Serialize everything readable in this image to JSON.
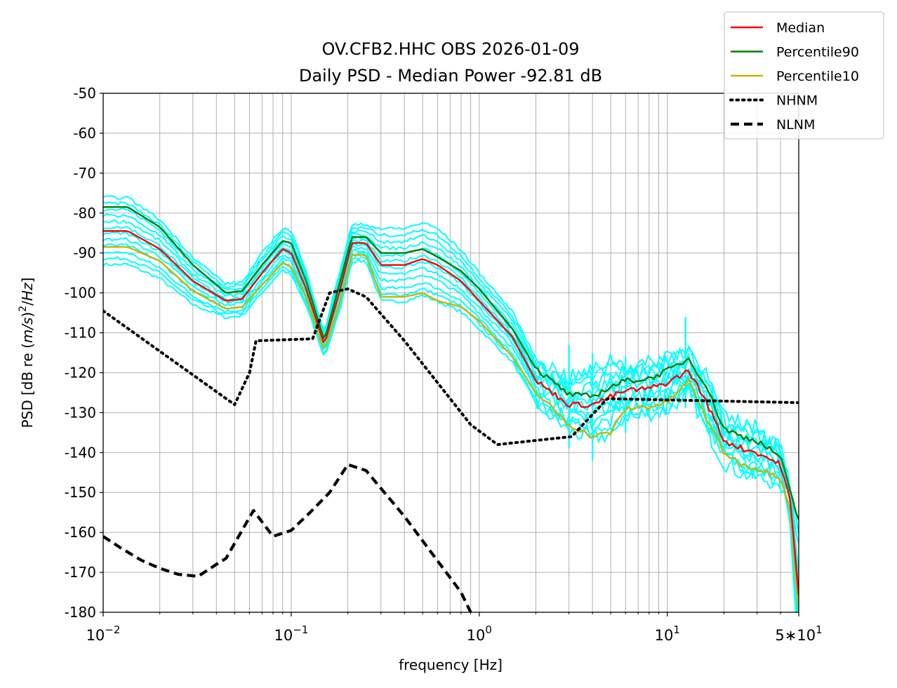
{
  "chart_data": {
    "type": "line",
    "title": "OV.CFB2.HHC OBS 2026-01-09",
    "subtitle": "Daily PSD - Median Power -92.81 dB",
    "xlabel": "frequency [Hz]",
    "ylabel_prefix": "PSD [dB re (",
    "ylabel_unit_a": "m/s",
    "ylabel_mid": ")",
    "ylabel_exp": "2",
    "ylabel_sep": "/",
    "ylabel_unit_b": "Hz",
    "ylabel_suffix": "]",
    "xscale": "log",
    "xlim": [
      0.01,
      50
    ],
    "ylim": [
      -180,
      -50
    ],
    "grid": true,
    "legend_position": "top-right",
    "xticks": [
      {
        "value": 0.01,
        "base": "10",
        "exp": "−2"
      },
      {
        "value": 0.1,
        "base": "10",
        "exp": "−1"
      },
      {
        "value": 1,
        "base": "10",
        "exp": "0"
      },
      {
        "value": 10,
        "base": "10",
        "exp": "1"
      },
      {
        "value": 50,
        "base": "5∗10",
        "exp": "1"
      }
    ],
    "yticks": [
      "-50",
      "-60",
      "-70",
      "-80",
      "-90",
      "-100",
      "-110",
      "-120",
      "-130",
      "-140",
      "-150",
      "-160",
      "-170",
      "-180"
    ],
    "hourly_color": "#00ffff",
    "series": [
      {
        "name": "Median",
        "color": "#ff0000",
        "style": "solid",
        "x": [
          0.01,
          0.0135,
          0.02,
          0.03,
          0.045,
          0.055,
          0.07,
          0.09,
          0.1,
          0.12,
          0.15,
          0.18,
          0.21,
          0.25,
          0.3,
          0.4,
          0.5,
          0.6,
          0.8,
          1.0,
          1.5,
          2.0,
          3.0,
          4.0,
          5.0,
          6.0,
          8.0,
          10,
          13,
          16,
          20,
          25,
          30,
          40,
          45,
          50
        ],
        "y": [
          -84.5,
          -84.5,
          -89,
          -97,
          -102,
          -101.5,
          -95,
          -89,
          -90,
          -99,
          -113,
          -100,
          -87.5,
          -87.5,
          -93,
          -93,
          -91.5,
          -93,
          -97,
          -102,
          -111,
          -122,
          -128,
          -128,
          -126,
          -124.5,
          -124,
          -122.5,
          -119.5,
          -127,
          -137,
          -139,
          -140,
          -143,
          -152,
          -176
        ]
      },
      {
        "name": "Percentile90",
        "color": "#008000",
        "style": "solid",
        "x": [
          0.01,
          0.0135,
          0.02,
          0.03,
          0.045,
          0.055,
          0.07,
          0.09,
          0.1,
          0.12,
          0.15,
          0.18,
          0.21,
          0.25,
          0.3,
          0.4,
          0.5,
          0.6,
          0.8,
          1.0,
          1.5,
          2.0,
          3.0,
          4.0,
          5.0,
          6.0,
          8.0,
          10,
          13,
          16,
          20,
          25,
          30,
          40,
          45,
          50
        ],
        "y": [
          -78.5,
          -78.5,
          -83.5,
          -93,
          -100,
          -99.5,
          -93,
          -87,
          -87.5,
          -97,
          -112,
          -98,
          -86,
          -86,
          -90,
          -90,
          -89,
          -91,
          -94.5,
          -99,
          -109,
          -119,
          -125.5,
          -126,
          -123.5,
          -122,
          -121.5,
          -119.5,
          -116.5,
          -123,
          -134,
          -136,
          -137,
          -141,
          -150,
          -157
        ]
      },
      {
        "name": "Percentile10",
        "color": "#c8b400",
        "style": "solid",
        "x": [
          0.01,
          0.0135,
          0.02,
          0.03,
          0.045,
          0.055,
          0.07,
          0.09,
          0.1,
          0.12,
          0.15,
          0.18,
          0.21,
          0.25,
          0.3,
          0.4,
          0.5,
          0.6,
          0.8,
          1.0,
          1.5,
          2.0,
          3.0,
          4.0,
          5.0,
          6.0,
          8.0,
          10,
          13,
          16,
          20,
          25,
          30,
          40,
          45,
          50
        ],
        "y": [
          -88.5,
          -88.5,
          -92,
          -99.5,
          -104,
          -103.5,
          -98,
          -92.5,
          -93.5,
          -101,
          -114.5,
          -103,
          -90.5,
          -90.5,
          -101,
          -101,
          -100,
          -102,
          -103.5,
          -107,
          -116,
          -125,
          -133,
          -136,
          -135,
          -129,
          -128.5,
          -127.5,
          -122,
          -131,
          -140,
          -143,
          -144,
          -146,
          -154,
          -180
        ]
      },
      {
        "name": "NHNM",
        "color": "#000000",
        "style": "dotted",
        "x": [
          0.01,
          0.05,
          0.06,
          0.065,
          0.13,
          0.16,
          0.2,
          0.25,
          0.4,
          0.9,
          1.25,
          3.1,
          4.8,
          50
        ],
        "y": [
          -104.5,
          -128,
          -120,
          -112,
          -111.5,
          -100,
          -99,
          -101,
          -112,
          -133,
          -138,
          -136,
          -126.5,
          -127.5
        ]
      },
      {
        "name": "NLNM",
        "color": "#000000",
        "style": "dashed",
        "x": [
          0.01,
          0.0125,
          0.016,
          0.02,
          0.025,
          0.032,
          0.04,
          0.045,
          0.063,
          0.08,
          0.1,
          0.126,
          0.16,
          0.2,
          0.25,
          0.4,
          0.8,
          0.9
        ],
        "y": [
          -161,
          -164,
          -167,
          -169,
          -170.5,
          -171,
          -168,
          -166.5,
          -154.5,
          -161,
          -159.5,
          -155,
          -150,
          -143,
          -144.5,
          -156,
          -175,
          -180
        ]
      }
    ],
    "spikes": [
      {
        "x": 3.0,
        "y": -113
      },
      {
        "x": 4.0,
        "y": -115
      },
      {
        "x": 6.0,
        "y": -116
      },
      {
        "x": 12.5,
        "y": -106
      }
    ]
  }
}
